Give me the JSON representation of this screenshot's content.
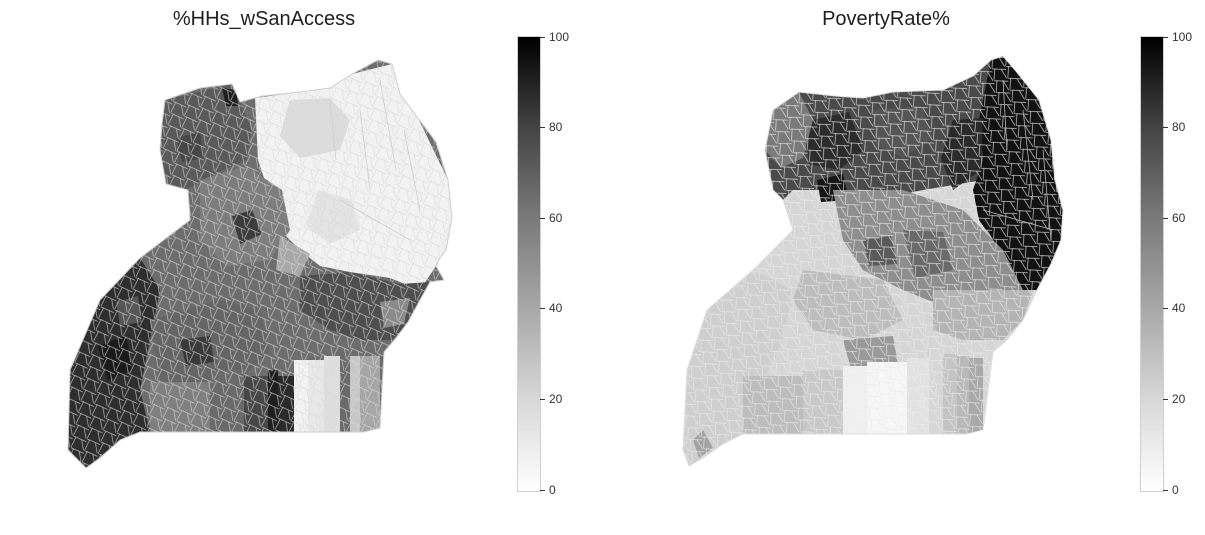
{
  "maps": [
    {
      "title": "%HHs_wSanAccess",
      "colorbar_ticks": [
        "100",
        "80",
        "60",
        "40",
        "20",
        "0"
      ],
      "colormap": "Greys",
      "value_range": [
        0,
        100
      ]
    },
    {
      "title": "PovertyRate%",
      "colorbar_ticks": [
        "100",
        "80",
        "60",
        "40",
        "20",
        "0"
      ],
      "colormap": "Greys",
      "value_range": [
        0,
        100
      ]
    }
  ]
}
